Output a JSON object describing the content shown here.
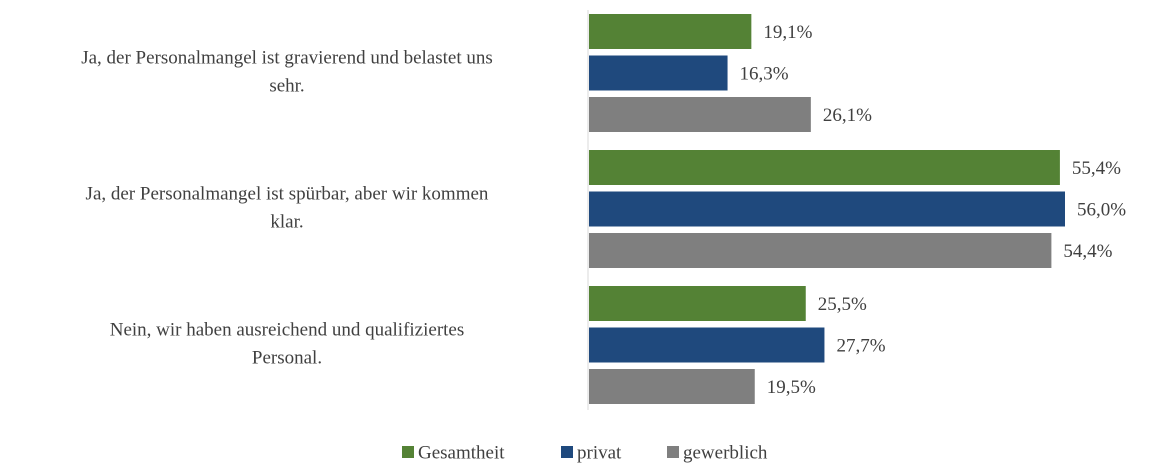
{
  "chart_data": {
    "type": "bar",
    "orientation": "horizontal",
    "categories": [
      [
        "Ja, der Personalmangel ist gravierend und belastet uns",
        "sehr."
      ],
      [
        "Ja, der Personalmangel ist spürbar, aber wir kommen",
        "klar."
      ],
      [
        "Nein, wir haben ausreichend und qualifiziertes",
        "Personal."
      ]
    ],
    "series": [
      {
        "name": "Gesamtheit",
        "color": "#548235",
        "values": [
          19.1,
          55.4,
          25.5
        ],
        "value_labels": [
          "19,1%",
          "55,4%",
          "25,5%"
        ]
      },
      {
        "name": "privat",
        "color": "#1f497d",
        "values": [
          16.3,
          56.0,
          27.7
        ],
        "value_labels": [
          "16,3%",
          "56,0%",
          "27,7%"
        ]
      },
      {
        "name": "gewerblich",
        "color": "#7f7f7f",
        "values": [
          26.1,
          54.4,
          19.5
        ],
        "value_labels": [
          "26,1%",
          "54,4%",
          "19,5%"
        ]
      }
    ],
    "legend": "bottom"
  }
}
